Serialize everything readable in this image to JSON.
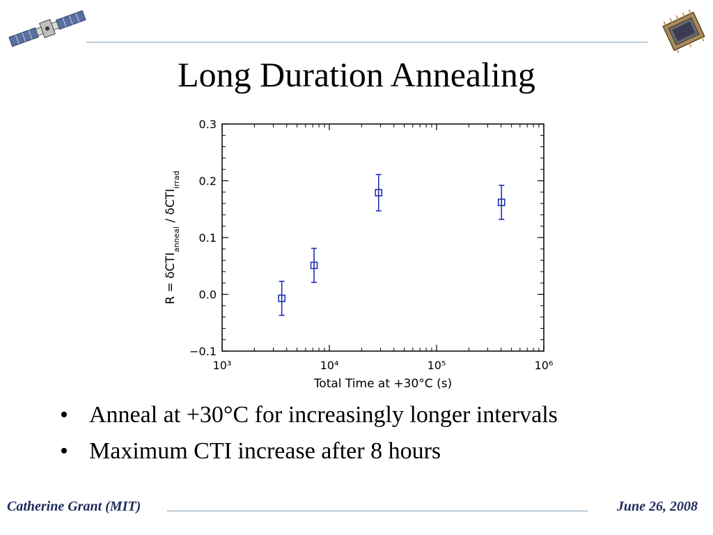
{
  "slide": {
    "title": "Long Duration Annealing",
    "bullets": [
      "Anneal at +30°C for increasingly longer intervals",
      "Maximum CTI increase after 8 hours"
    ],
    "footer_left": "Catherine Grant (MIT)",
    "footer_right": "June 26, 2008"
  },
  "icons": {
    "top_left": "satellite-icon",
    "top_right": "ccd-chip-icon"
  },
  "colors": {
    "rule": "#7f9fb4",
    "footer_text": "#1f2b5c",
    "series": "#1f2fb3"
  },
  "chart_data": {
    "type": "scatter",
    "title": "",
    "xlabel": "Total Time at +30°C (s)",
    "ylabel": "R = δCTI_anneal / δCTI_irrad",
    "x_scale": "log",
    "xlim": [
      1000,
      1000000
    ],
    "ylim": [
      -0.1,
      0.3
    ],
    "x_tick_labels": [
      "10³",
      "10⁴",
      "10⁵",
      "10⁶"
    ],
    "y_tick_labels": [
      "−0.1",
      "0.0",
      "0.1",
      "0.2",
      "0.3"
    ],
    "grid": false,
    "series": [
      {
        "x": [
          3600,
          7200,
          28800,
          403200
        ],
        "y": [
          -0.007,
          0.051,
          0.179,
          0.162
        ],
        "yerr": [
          0.03,
          0.03,
          0.032,
          0.03
        ]
      }
    ]
  }
}
